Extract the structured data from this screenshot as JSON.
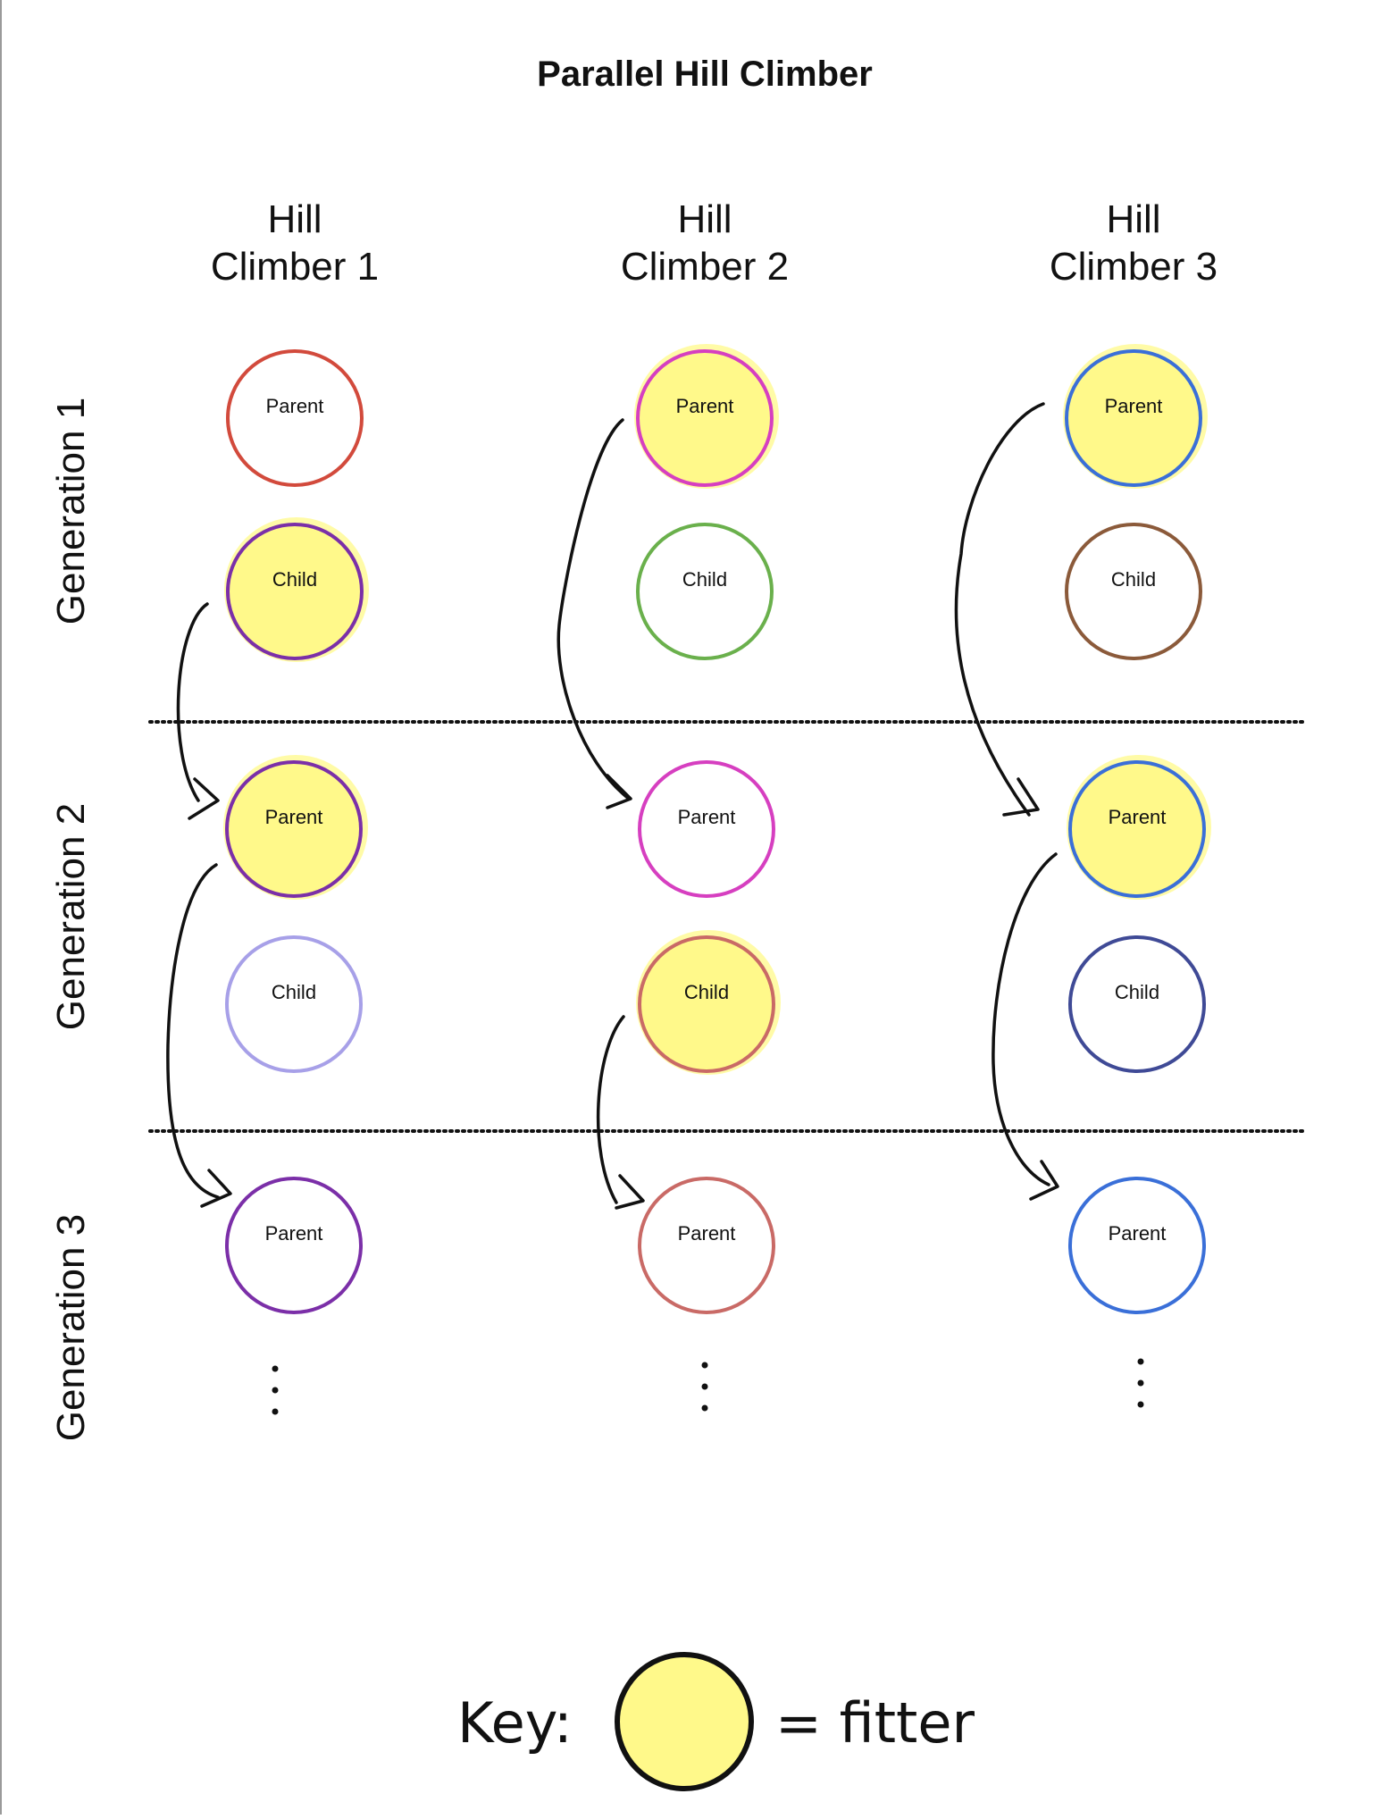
{
  "title": "Parallel Hill Climber",
  "columns": [
    {
      "label_line1": "Hill",
      "label_line2": "Climber 1"
    },
    {
      "label_line1": "Hill",
      "label_line2": "Climber 2"
    },
    {
      "label_line1": "Hill",
      "label_line2": "Climber 3"
    }
  ],
  "rows": [
    {
      "label": "Generation 1"
    },
    {
      "label": "Generation 2"
    },
    {
      "label": "Generation 3"
    }
  ],
  "nodes": [
    {
      "id": "g1c1p",
      "label": "Parent",
      "outline": "#d24a3c",
      "fitter": false
    },
    {
      "id": "g1c1c",
      "label": "Child",
      "outline": "#7b2fa8",
      "fitter": true
    },
    {
      "id": "g1c2p",
      "label": "Parent",
      "outline": "#d63fc0",
      "fitter": true
    },
    {
      "id": "g1c2c",
      "label": "Child",
      "outline": "#6ab04c",
      "fitter": false
    },
    {
      "id": "g1c3p",
      "label": "Parent",
      "outline": "#3a6fd8",
      "fitter": true
    },
    {
      "id": "g1c3c",
      "label": "Child",
      "outline": "#8b5a3a",
      "fitter": false
    },
    {
      "id": "g2c1p",
      "label": "Parent",
      "outline": "#7b2fa8",
      "fitter": true
    },
    {
      "id": "g2c1c",
      "label": "Child",
      "outline": "#a7a0e8",
      "fitter": false
    },
    {
      "id": "g2c2p",
      "label": "Parent",
      "outline": "#d63fc0",
      "fitter": false
    },
    {
      "id": "g2c2c",
      "label": "Child",
      "outline": "#c96a66",
      "fitter": true
    },
    {
      "id": "g2c3p",
      "label": "Parent",
      "outline": "#3a6fd8",
      "fitter": true
    },
    {
      "id": "g2c3c",
      "label": "Child",
      "outline": "#3f4a96",
      "fitter": false
    },
    {
      "id": "g3c1p",
      "label": "Parent",
      "outline": "#7b2fa8",
      "fitter": false
    },
    {
      "id": "g3c2p",
      "label": "Parent",
      "outline": "#c96a66",
      "fitter": false
    },
    {
      "id": "g3c3p",
      "label": "Parent",
      "outline": "#3a6fd8",
      "fitter": false
    }
  ],
  "arrows": [
    {
      "from": "g1c1c",
      "to": "g2c1p"
    },
    {
      "from": "g1c2p",
      "to": "g2c2p"
    },
    {
      "from": "g1c3p",
      "to": "g2c3p"
    },
    {
      "from": "g2c1p",
      "to": "g3c1p"
    },
    {
      "from": "g2c2c",
      "to": "g3c2p"
    },
    {
      "from": "g2c3p",
      "to": "g3c3p"
    }
  ],
  "key": {
    "label": "Key:",
    "meaning": "= fitter"
  },
  "colors": {
    "fitter_fill": "#fff98a",
    "line": "#111111"
  }
}
